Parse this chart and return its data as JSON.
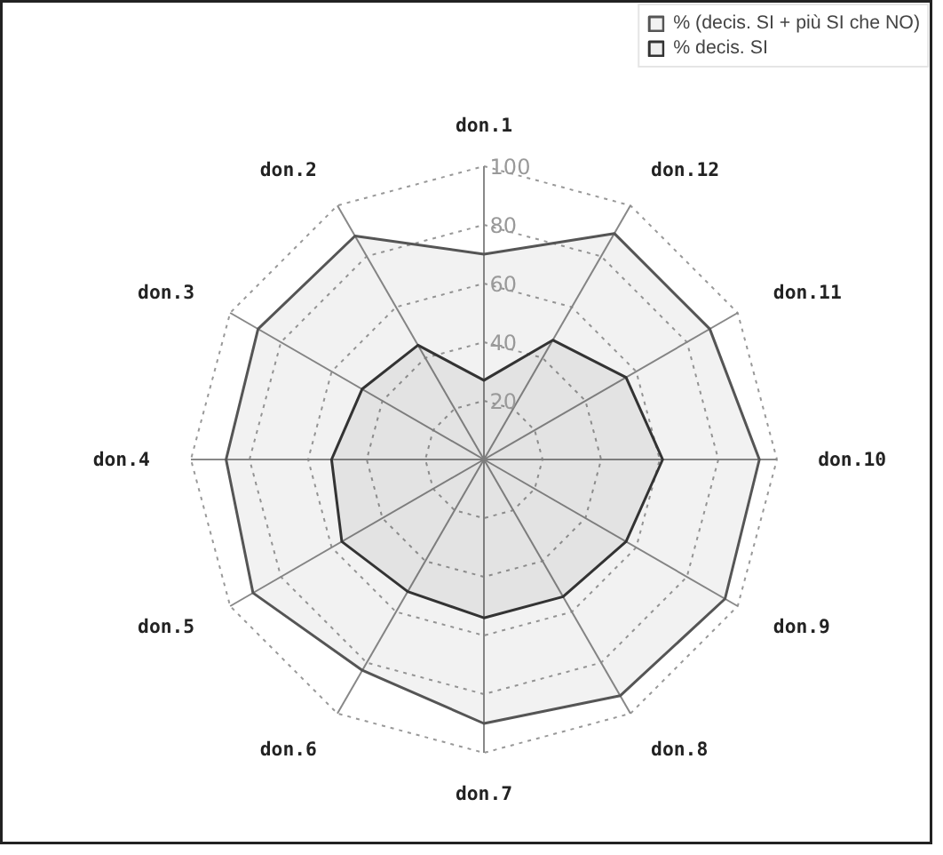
{
  "chart_data": {
    "type": "radar",
    "categories": [
      "don.1",
      "don.12",
      "don.11",
      "don.10",
      "don.9",
      "don.8",
      "don.7",
      "don.6",
      "don.5",
      "don.4",
      "don.3",
      "don.2"
    ],
    "series": [
      {
        "name": "% (decis. SI + più SI che NO)",
        "color": "#555555",
        "values": [
          70,
          89,
          89,
          94,
          95,
          93,
          90,
          83,
          91,
          88,
          89,
          88
        ]
      },
      {
        "name": "% decis. SI",
        "color": "#333333",
        "values": [
          27,
          47,
          56,
          61,
          56,
          54,
          54,
          52,
          56,
          52,
          48,
          45
        ]
      }
    ],
    "ylim": [
      0,
      100
    ],
    "yticks": [
      20,
      40,
      60,
      80,
      100
    ],
    "grid": true,
    "legend": "top right"
  }
}
